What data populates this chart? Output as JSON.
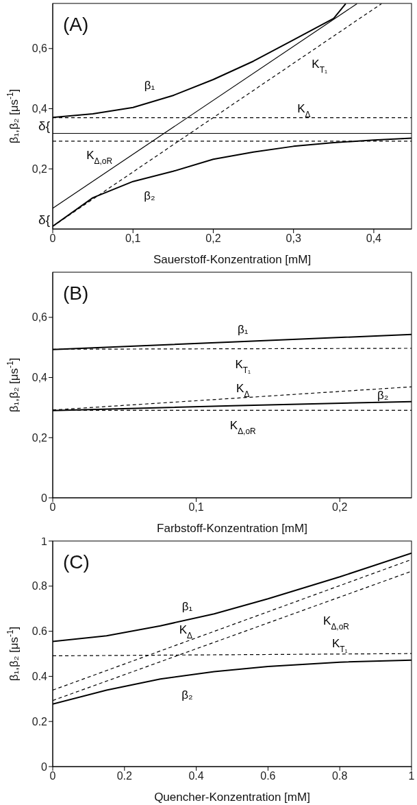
{
  "chart_data": [
    {
      "type": "line",
      "title": "(A)",
      "xlabel": "Sauerstoff-Konzentration [mM]",
      "ylabel": "β₁,β₂  [μs$^{-1}$]",
      "xlim": [
        0,
        0.447
      ],
      "ylim": [
        0,
        0.75
      ],
      "xticks": [
        0,
        {
          "value": 0.1,
          "label": "0,1"
        },
        {
          "value": 0.2,
          "label": "0,2"
        },
        {
          "value": 0.3,
          "label": "0,3"
        },
        {
          "value": 0.4,
          "label": "0,4"
        }
      ],
      "yticks": [
        {
          "value": 0.2,
          "label": "0,2"
        },
        {
          "value": 0.4,
          "label": "0,4"
        },
        {
          "value": 0.6,
          "label": "0,6"
        }
      ],
      "annotations": [
        "δ{",
        "δ{"
      ],
      "series": [
        {
          "name": "β₁",
          "color": "#000000",
          "line_style": "solid",
          "x": [
            0,
            0.05,
            0.1,
            0.15,
            0.2,
            0.25,
            0.3,
            0.35,
            0.365
          ],
          "values": [
            0.371,
            0.383,
            0.404,
            0.444,
            0.497,
            0.558,
            0.629,
            0.7,
            0.749
          ]
        },
        {
          "name": "β₂",
          "color": "#000000",
          "line_style": "solid",
          "x": [
            0,
            0.05,
            0.1,
            0.15,
            0.2,
            0.25,
            0.3,
            0.35,
            0.4,
            0.447
          ],
          "values": [
            0.009,
            0.104,
            0.158,
            0.192,
            0.232,
            0.256,
            0.275,
            0.287,
            0.296,
            0.302
          ]
        },
        {
          "name": "K$_{T₁}$",
          "color": "#000000",
          "line_style": "dashed",
          "x": [
            0,
            0.4095
          ],
          "values": [
            0.009,
            0.749
          ]
        },
        {
          "color": "#000000",
          "line_style": "solid",
          "x": [
            0,
            0.379
          ],
          "values": [
            0.069,
            0.749
          ]
        },
        {
          "name": "K$_{Δ}$",
          "color": "#000000",
          "line_style": "dashed",
          "x": [
            0,
            0.447
          ],
          "values": [
            0.37,
            0.37
          ]
        },
        {
          "color": "#000000",
          "line_style": "solid",
          "x": [
            0,
            0.447
          ],
          "values": [
            0.318,
            0.318
          ]
        },
        {
          "name": "K$_{Δ,oR}$",
          "color": "#000000",
          "line_style": "dashed",
          "x": [
            0,
            0.447
          ],
          "values": [
            0.292,
            0.292
          ]
        }
      ]
    },
    {
      "type": "line",
      "title": "(B)",
      "xlabel": "Farbstoff-Konzentration [mM]",
      "ylabel": "β₁,β₂  [μs$^{-1}$]",
      "xlim": [
        0,
        0.25
      ],
      "ylim": [
        0,
        0.75
      ],
      "xticks": [
        0,
        {
          "value": 0.1,
          "label": "0,1"
        },
        {
          "value": 0.2,
          "label": "0,2"
        }
      ],
      "yticks": [
        0,
        {
          "value": 0.2,
          "label": "0,2"
        },
        {
          "value": 0.4,
          "label": "0,4"
        },
        {
          "value": 0.6,
          "label": "0,6"
        }
      ],
      "series": [
        {
          "name": "β₁",
          "color": "#000000",
          "line_style": "solid",
          "x": [
            0,
            0.125,
            0.25
          ],
          "values": [
            0.493,
            0.518,
            0.543
          ]
        },
        {
          "name": "K$_{T₁}$",
          "color": "#000000",
          "line_style": "dashed",
          "x": [
            0,
            0.25
          ],
          "values": [
            0.494,
            0.497
          ]
        },
        {
          "name": "K$_{Δ}$",
          "color": "#000000",
          "line_style": "dashed",
          "x": [
            0,
            0.25
          ],
          "values": [
            0.292,
            0.369
          ]
        },
        {
          "name": "β₂",
          "color": "#000000",
          "line_style": "solid",
          "x": [
            0,
            0.125,
            0.25
          ],
          "values": [
            0.29,
            0.306,
            0.32
          ]
        },
        {
          "name": "K$_{Δ,oR}$",
          "color": "#000000",
          "line_style": "dashed",
          "x": [
            0,
            0.25
          ],
          "values": [
            0.291,
            0.291
          ]
        }
      ]
    },
    {
      "type": "line",
      "title": "(C)",
      "xlabel": "Quencher-Konzentration [mM]",
      "ylabel": "β₁,β₂  [μs$^{-1}$]",
      "xlim": [
        0,
        1
      ],
      "ylim": [
        0,
        1
      ],
      "xticks": [
        0,
        0.2,
        0.4,
        0.6,
        0.8,
        1
      ],
      "yticks": [
        0,
        0.2,
        0.4,
        0.6,
        0.8,
        1
      ],
      "series": [
        {
          "name": "β₁",
          "color": "#000000",
          "line_style": "solid",
          "x": [
            0,
            0.15,
            0.3,
            0.45,
            0.6,
            0.8,
            1
          ],
          "values": [
            0.555,
            0.58,
            0.624,
            0.677,
            0.744,
            0.841,
            0.946
          ]
        },
        {
          "name": "β₂",
          "color": "#000000",
          "line_style": "solid",
          "x": [
            0,
            0.15,
            0.3,
            0.45,
            0.6,
            0.8,
            1
          ],
          "values": [
            0.277,
            0.339,
            0.388,
            0.421,
            0.444,
            0.463,
            0.472
          ]
        },
        {
          "name": "K$_{T₁}$",
          "color": "#000000",
          "line_style": "dashed",
          "x": [
            0,
            1
          ],
          "values": [
            0.491,
            0.501
          ]
        },
        {
          "name": "K$_{Δ}$",
          "color": "#000000",
          "line_style": "dashed",
          "x": [
            0,
            1
          ],
          "values": [
            0.339,
            0.918
          ]
        },
        {
          "name": "K$_{Δ,oR}$",
          "color": "#000000",
          "line_style": "dashed",
          "x": [
            0,
            1
          ],
          "values": [
            0.293,
            0.866
          ]
        }
      ]
    }
  ]
}
